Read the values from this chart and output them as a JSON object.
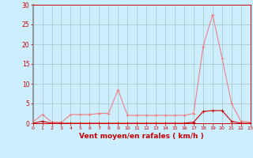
{
  "hours": [
    0,
    1,
    2,
    3,
    4,
    5,
    6,
    7,
    8,
    9,
    10,
    11,
    12,
    13,
    14,
    15,
    16,
    17,
    18,
    19,
    20,
    21,
    22,
    23
  ],
  "rafales": [
    0.3,
    2.2,
    0.3,
    0.2,
    2.2,
    2.2,
    2.2,
    2.5,
    2.5,
    8.5,
    2.0,
    2.0,
    2.0,
    2.0,
    2.0,
    2.0,
    2.0,
    2.5,
    19.5,
    27.5,
    16.5,
    5.0,
    0.5,
    0.3
  ],
  "moyen": [
    0.0,
    0.5,
    0.0,
    0.0,
    0.0,
    0.0,
    0.0,
    0.0,
    0.0,
    0.0,
    0.0,
    0.0,
    0.0,
    0.0,
    0.0,
    0.0,
    0.0,
    0.3,
    3.0,
    3.2,
    3.2,
    0.5,
    0.0,
    0.0
  ],
  "color_rafales": "#f08080",
  "color_moyen": "#cc0000",
  "bg_color": "#cceeff",
  "grid_color": "#aacccc",
  "xlabel": "Vent moyen/en rafales ( km/h )",
  "ylim": [
    0,
    30
  ],
  "xlim": [
    0,
    23
  ],
  "yticks": [
    0,
    5,
    10,
    15,
    20,
    25,
    30
  ],
  "xticks": [
    0,
    1,
    2,
    3,
    4,
    5,
    6,
    7,
    8,
    9,
    10,
    11,
    12,
    13,
    14,
    15,
    16,
    17,
    18,
    19,
    20,
    21,
    22,
    23
  ],
  "tick_color": "#cc0000",
  "label_color": "#cc0000",
  "axis_color": "#cc0000",
  "left_spine_color": "#888888"
}
